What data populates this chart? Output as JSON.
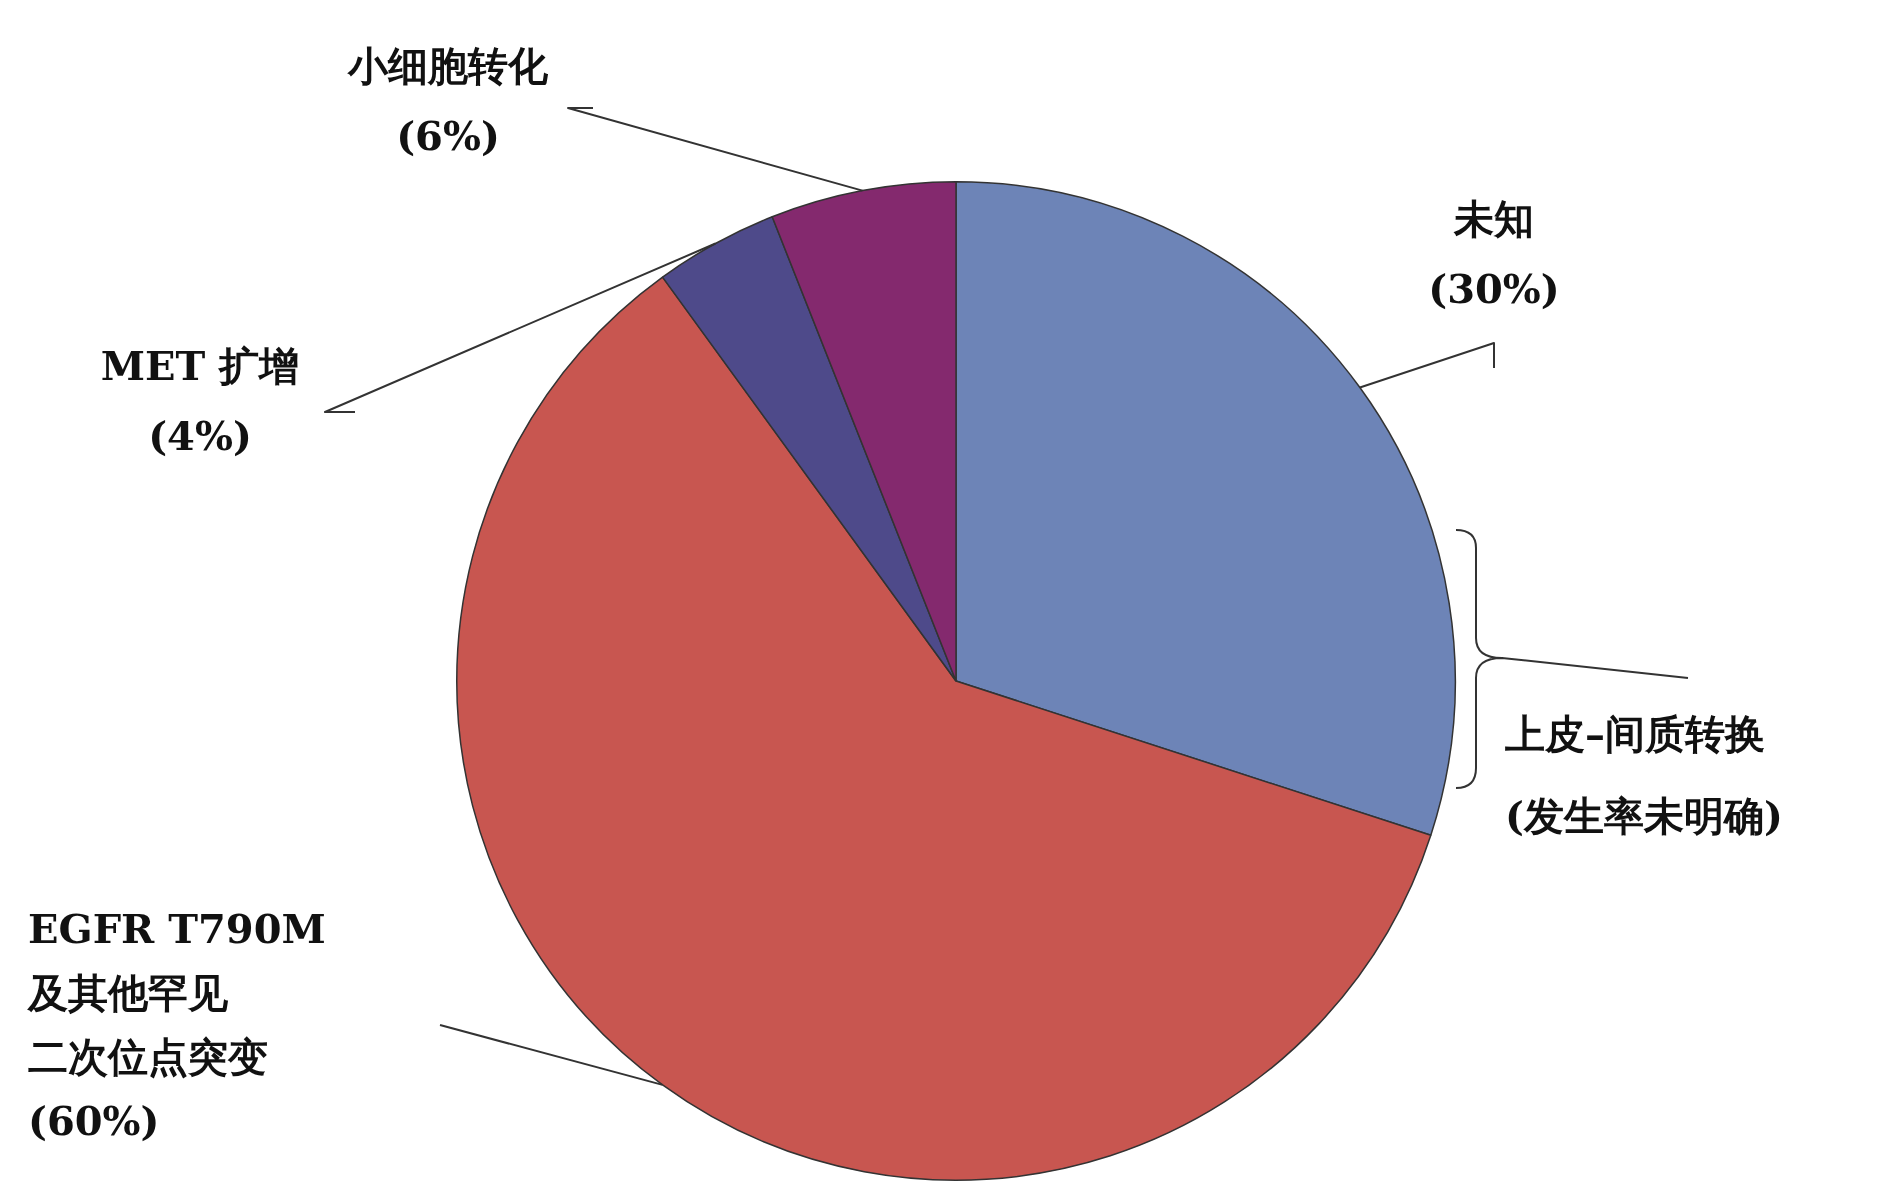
{
  "chart_data": {
    "type": "pie",
    "categories": [
      "未知",
      "EGFR T790M及其他罕见二次位点突变",
      "MET 扩增",
      "小细胞转化"
    ],
    "values": [
      30,
      60,
      4,
      6
    ],
    "colors": [
      "#6d84b7",
      "#c85650",
      "#4e4a8a",
      "#84296e"
    ],
    "value_labels": [
      "(30%)",
      "(60%)",
      "(4%)",
      "(6%)"
    ],
    "annotations": [
      "上皮–间质转换(发生率未明确)"
    ],
    "legend": false
  }
}
